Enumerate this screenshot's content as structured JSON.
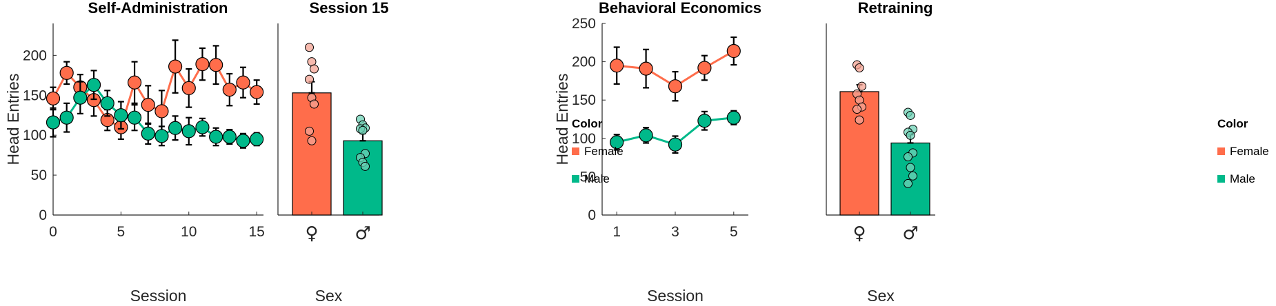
{
  "colors": {
    "female": "#FF6D4B",
    "male": "#00B98A",
    "female_light": "#F4A393",
    "male_light": "#6ED1B5",
    "axis": "#262626"
  },
  "legends": [
    {
      "title": "Color",
      "items": [
        {
          "label": "Female",
          "color": "#FF6D4B"
        },
        {
          "label": "Male",
          "color": "#00B98A"
        }
      ]
    },
    {
      "title": "Color",
      "items": [
        {
          "label": "Female",
          "color": "#FF6D4B"
        },
        {
          "label": "Male",
          "color": "#00B98A"
        }
      ]
    }
  ],
  "chart_data": [
    {
      "type": "line",
      "title": "Self-Administration",
      "xlabel": "Session",
      "ylabel": "Head Entries",
      "xlim": [
        0,
        15.5
      ],
      "ylim": [
        0,
        240
      ],
      "xticks": [
        0,
        5,
        10,
        15
      ],
      "yticks": [
        0,
        50,
        100,
        150,
        200
      ],
      "series": [
        {
          "name": "Female",
          "x": [
            0,
            1,
            2,
            3,
            4,
            5,
            6,
            7,
            8,
            9,
            10,
            11,
            12,
            13,
            14,
            15
          ],
          "y": [
            146,
            178,
            160,
            144,
            119,
            110,
            166,
            138,
            130,
            186,
            159,
            189,
            188,
            157,
            166,
            154
          ],
          "err": [
            14,
            14,
            16,
            20,
            13,
            15,
            26,
            24,
            26,
            33,
            24,
            20,
            24,
            20,
            19,
            15
          ]
        },
        {
          "name": "Male",
          "x": [
            0,
            1,
            2,
            3,
            4,
            5,
            6,
            7,
            8,
            9,
            10,
            11,
            12,
            13,
            14,
            15
          ],
          "y": [
            116,
            122,
            147,
            163,
            140,
            125,
            122,
            102,
            99,
            109,
            105,
            110,
            98,
            98,
            93,
            95
          ],
          "err": [
            18,
            18,
            20,
            18,
            16,
            17,
            16,
            13,
            12,
            15,
            17,
            11,
            11,
            9,
            9,
            8
          ]
        }
      ]
    },
    {
      "type": "bar",
      "title": "Session 15",
      "xlabel": "Sex",
      "ylim": [
        0,
        240
      ],
      "categories": [
        "♀",
        "♂"
      ],
      "values": [
        153,
        93
      ],
      "err": [
        14,
        9
      ],
      "points": [
        [
          210,
          192,
          183,
          170,
          147,
          139,
          105,
          93
        ],
        [
          120,
          113,
          109,
          108,
          106,
          77,
          72,
          66,
          61
        ]
      ]
    },
    {
      "type": "line",
      "title": "Behavioral Economics",
      "xlabel": "Session",
      "ylabel": "Head Entries",
      "xlim": [
        0.5,
        5.5
      ],
      "ylim": [
        0,
        250
      ],
      "xticks": [
        1,
        3,
        5
      ],
      "yticks": [
        0,
        50,
        100,
        150,
        200,
        250
      ],
      "series": [
        {
          "name": "Female",
          "x": [
            1,
            2,
            3,
            4,
            5
          ],
          "y": [
            195,
            191,
            168,
            192,
            214
          ],
          "err": [
            24,
            25,
            19,
            16,
            18
          ]
        },
        {
          "name": "Male",
          "x": [
            1,
            2,
            3,
            4,
            5
          ],
          "y": [
            95,
            104,
            92,
            123,
            127
          ],
          "err": [
            10,
            10,
            11,
            12,
            9
          ]
        }
      ]
    },
    {
      "type": "bar",
      "title": "Retraining",
      "xlabel": "Sex",
      "ylim": [
        0,
        250
      ],
      "categories": [
        "♀",
        "♂"
      ],
      "values": [
        161,
        94
      ],
      "err": [
        9,
        11
      ],
      "points": [
        [
          196,
          192,
          168,
          158,
          150,
          141,
          138,
          124
        ],
        [
          134,
          130,
          112,
          108,
          104,
          81,
          76,
          62,
          51,
          41
        ]
      ]
    }
  ]
}
